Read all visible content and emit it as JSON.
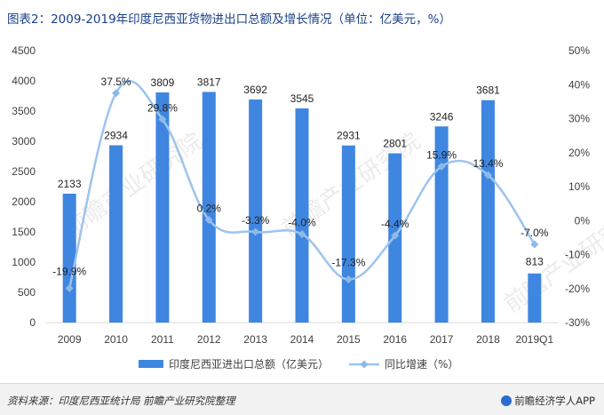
{
  "title": "图表2：2009-2019年印度尼西亚货物进出口总额及增长情况（单位：亿美元，%）",
  "footer": {
    "source": "资料来源：印度尼西亚统计局 前瞻产业研究院整理",
    "brand": "前瞻经济学人APP"
  },
  "watermark": "前瞻产业研究院",
  "colors": {
    "bar": "#3f86e0",
    "line": "#9cc4ee",
    "marker": "#8db9ea",
    "axis": "#d9d9d9",
    "text": "#404040"
  },
  "chart_data": {
    "type": "bar",
    "categories": [
      "2009",
      "2010",
      "2011",
      "2012",
      "2013",
      "2014",
      "2015",
      "2016",
      "2017",
      "2018",
      "2019Q1"
    ],
    "left_axis": {
      "min": 0,
      "max": 4500,
      "step": 500
    },
    "right_axis": {
      "min": -30,
      "max": 50,
      "step": 10,
      "unit": "%"
    },
    "series": [
      {
        "name": "印度尼西亚进出口总额（亿美元）",
        "kind": "bar",
        "axis": "left",
        "values": [
          2133,
          2934,
          3809,
          3817,
          3692,
          3545,
          2931,
          2801,
          3246,
          3681,
          813
        ],
        "labels": [
          "2133",
          "2934",
          "3809",
          "3817",
          "3692",
          "3545",
          "2931",
          "2801",
          "3246",
          "3681",
          "813"
        ]
      },
      {
        "name": "同比增速（%）",
        "kind": "line",
        "axis": "right",
        "values": [
          -19.9,
          37.5,
          29.8,
          0.2,
          -3.3,
          -4.0,
          -17.3,
          -4.4,
          15.9,
          13.4,
          -7.0
        ],
        "labels": [
          "-19.9%",
          "37.5%",
          "29.8%",
          "0.2%",
          "-3.3%",
          "-4.0%",
          "-17.3%",
          "-4.4%",
          "15.9%",
          "13.4%",
          "-7.0%"
        ]
      }
    ],
    "legend_position": "bottom",
    "grid": false
  }
}
